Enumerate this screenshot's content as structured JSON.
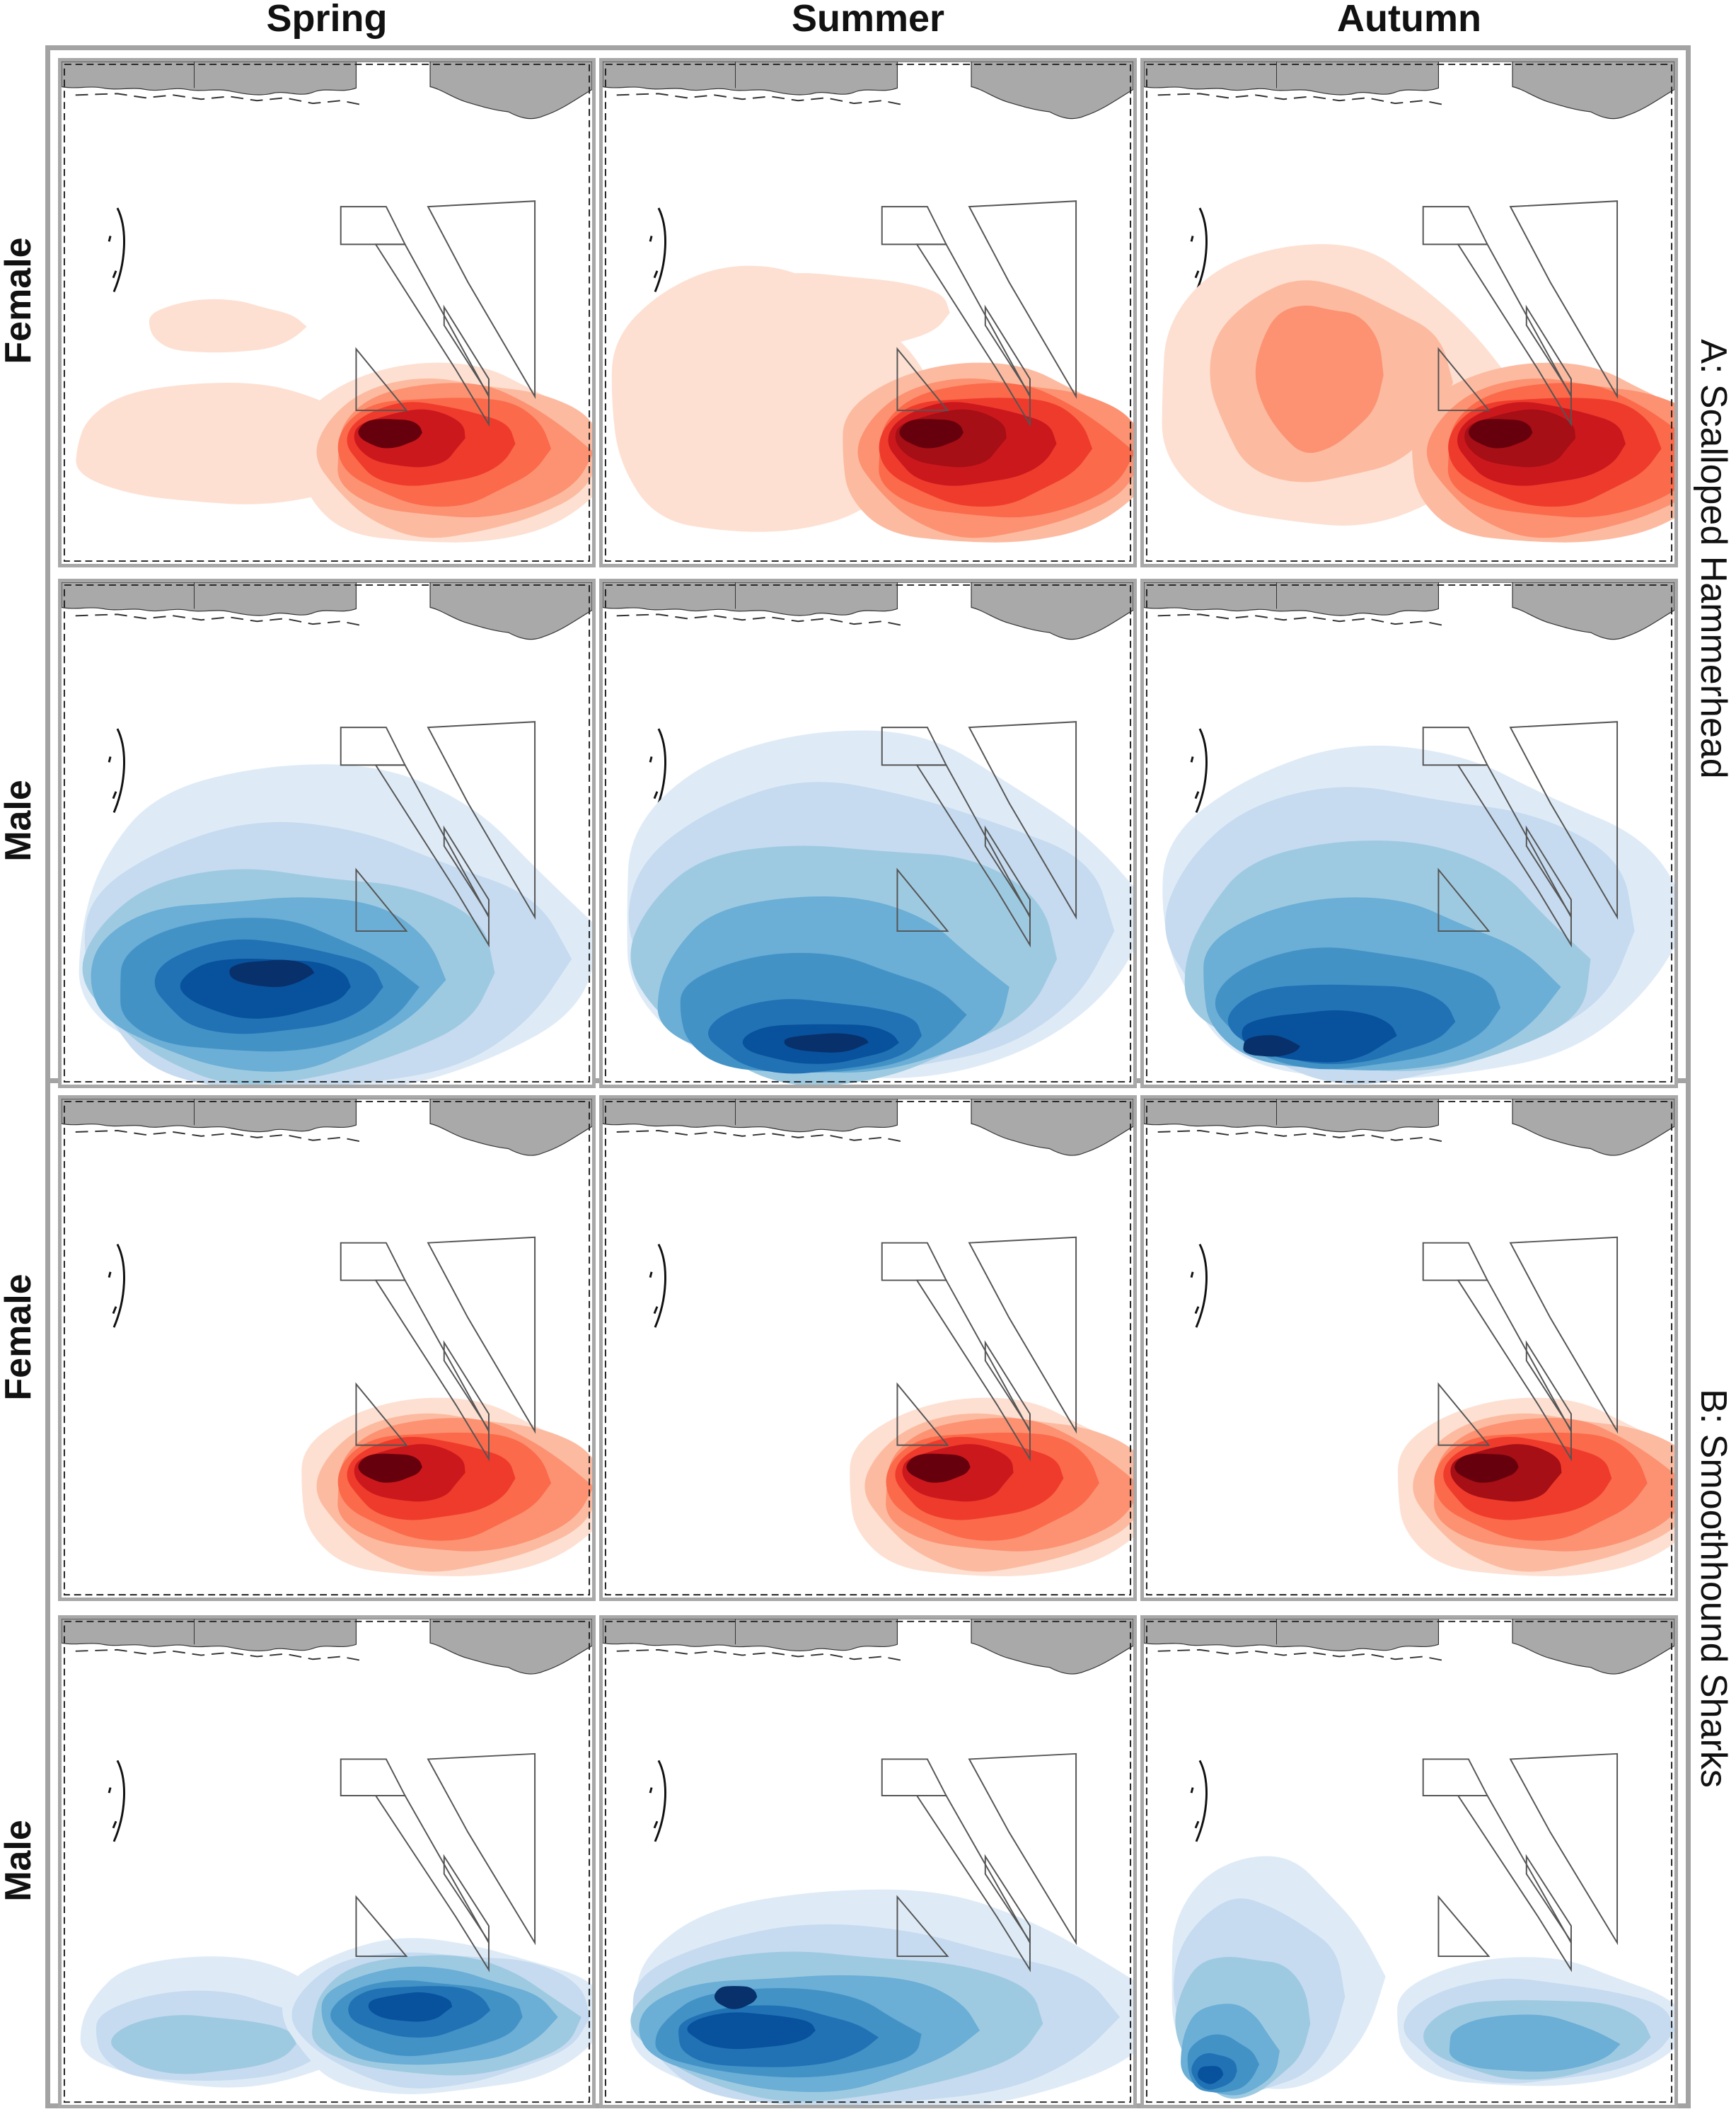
{
  "columns": [
    "Spring",
    "Summer",
    "Autumn"
  ],
  "groups": [
    {
      "label": "A: Scalloped Hammerhead",
      "rows": [
        {
          "sex": "Female",
          "color_scale": "Reds",
          "panels": [
            {
              "season": "Spring",
              "pattern": "hh-female-spring"
            },
            {
              "season": "Summer",
              "pattern": "hh-female-summer"
            },
            {
              "season": "Autumn",
              "pattern": "hh-female-autumn"
            }
          ]
        },
        {
          "sex": "Male",
          "color_scale": "Blues",
          "panels": [
            {
              "season": "Spring",
              "pattern": "hh-male-spring"
            },
            {
              "season": "Summer",
              "pattern": "hh-male-summer"
            },
            {
              "season": "Autumn",
              "pattern": "hh-male-autumn"
            }
          ]
        }
      ]
    },
    {
      "label": "B: Smoothhound Sharks",
      "rows": [
        {
          "sex": "Female",
          "color_scale": "Reds",
          "panels": [
            {
              "season": "Spring",
              "pattern": "sh-female-spring"
            },
            {
              "season": "Summer",
              "pattern": "sh-female-summer"
            },
            {
              "season": "Autumn",
              "pattern": "sh-female-autumn"
            }
          ]
        },
        {
          "sex": "Male",
          "color_scale": "Blues",
          "panels": [
            {
              "season": "Spring",
              "pattern": "sh-male-spring"
            },
            {
              "season": "Summer",
              "pattern": "sh-male-summer"
            },
            {
              "season": "Autumn",
              "pattern": "sh-male-autumn"
            }
          ]
        }
      ]
    }
  ],
  "colors": {
    "reds": [
      "#fde0d2",
      "#fcbba1",
      "#fc9272",
      "#fb6a4a",
      "#ef3b2c",
      "#cb181d",
      "#a50f15",
      "#67000d"
    ],
    "blues": [
      "#deebf7",
      "#c6dbef",
      "#9ecae1",
      "#6baed6",
      "#4292c6",
      "#2171b5",
      "#08519c",
      "#08306b"
    ],
    "land": "#a9a9a9",
    "frame": "#a3a3a3",
    "zone_outline": "#555555"
  }
}
